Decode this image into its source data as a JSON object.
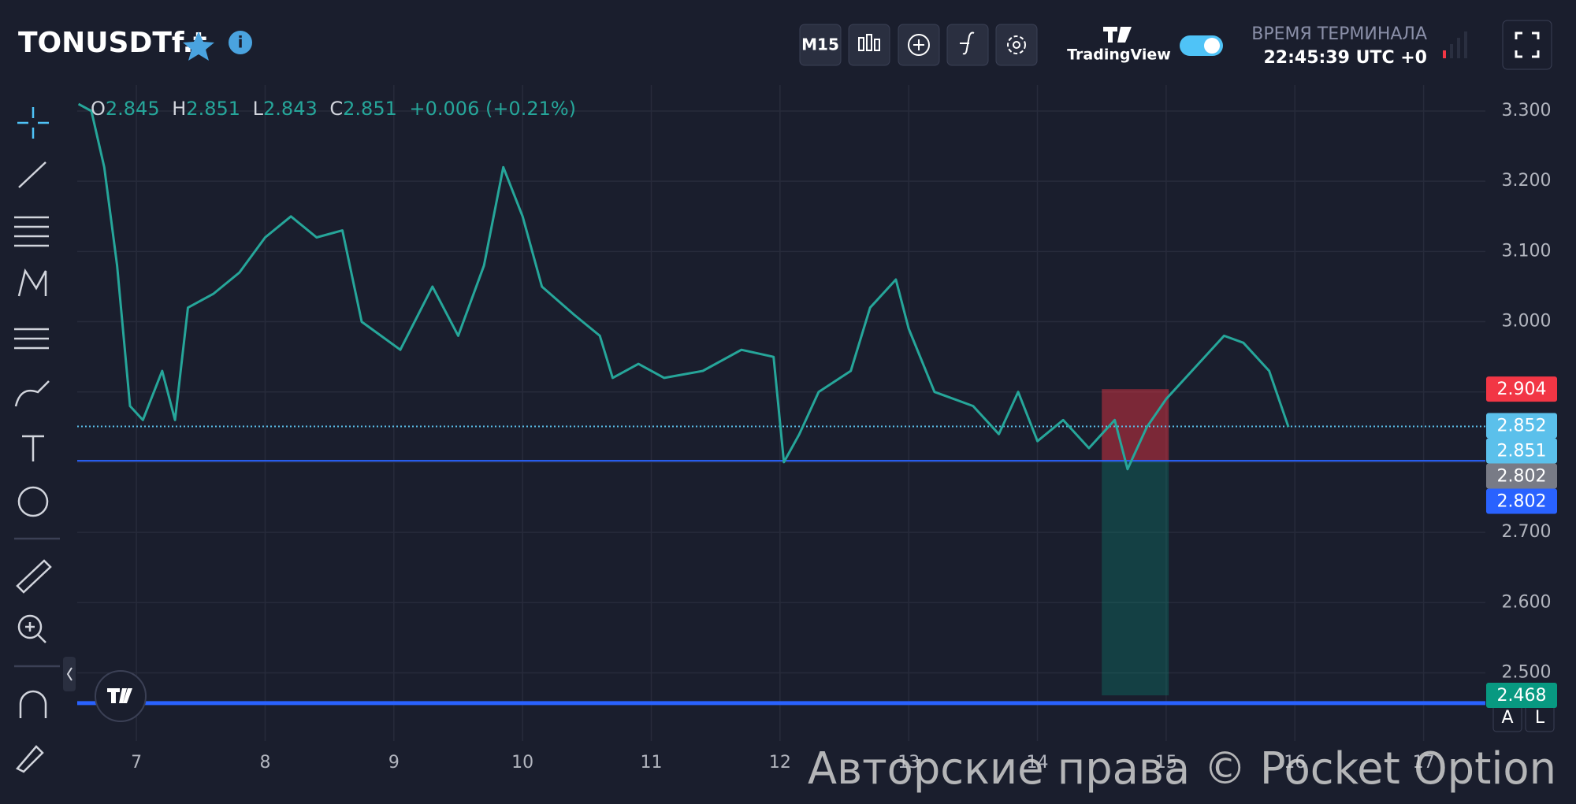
{
  "header": {
    "symbol": "TONUSDTf.t",
    "timeframe": "M15",
    "brand": "TradingView",
    "terminal_label": "ВРЕМЯ ТЕРМИНАЛА",
    "terminal_time": "22:45:39 UTC +0"
  },
  "ohlc": {
    "o_label": "O",
    "o": "2.845",
    "h_label": "H",
    "h": "2.851",
    "l_label": "L",
    "l": "2.843",
    "c_label": "C",
    "c": "2.851",
    "change": "+0.006 (+0.21%)"
  },
  "chart_data": {
    "type": "line",
    "x": [
      6.55,
      6.65,
      6.75,
      6.85,
      6.95,
      7.05,
      7.2,
      7.3,
      7.4,
      7.6,
      7.8,
      8.0,
      8.2,
      8.4,
      8.6,
      8.75,
      8.9,
      9.05,
      9.3,
      9.5,
      9.7,
      9.85,
      10.0,
      10.15,
      10.4,
      10.6,
      10.7,
      10.9,
      11.1,
      11.4,
      11.7,
      11.95,
      12.03,
      12.15,
      12.3,
      12.55,
      12.7,
      12.9,
      13.0,
      13.2,
      13.5,
      13.7,
      13.85,
      14.0,
      14.2,
      14.4,
      14.6,
      14.7,
      14.85,
      15.0,
      15.2,
      15.45,
      15.6,
      15.8,
      15.95
    ],
    "values": [
      3.31,
      3.3,
      3.22,
      3.08,
      2.88,
      2.86,
      2.93,
      2.86,
      3.02,
      3.04,
      3.07,
      3.12,
      3.15,
      3.12,
      3.13,
      3.0,
      2.98,
      2.96,
      3.05,
      2.98,
      3.08,
      3.22,
      3.15,
      3.05,
      3.01,
      2.98,
      2.92,
      2.94,
      2.92,
      2.93,
      2.96,
      2.95,
      2.8,
      2.84,
      2.9,
      2.93,
      3.02,
      3.06,
      2.99,
      2.9,
      2.88,
      2.84,
      2.9,
      2.83,
      2.86,
      2.82,
      2.86,
      2.79,
      2.85,
      2.89,
      2.93,
      2.98,
      2.97,
      2.93,
      2.85
    ],
    "color": "#26a69a",
    "xlim": [
      6.54,
      17.48
    ],
    "xticks": [
      7,
      8,
      9,
      10,
      11,
      12,
      13,
      14,
      15,
      16,
      17
    ],
    "ylim": [
      2.403,
      3.337
    ],
    "yticks": [
      {
        "value": 2.5,
        "label": "2.500"
      },
      {
        "value": 2.6,
        "label": "2.600"
      },
      {
        "value": 2.7,
        "label": "2.700"
      },
      {
        "value": 2.8,
        "label": "2.800"
      },
      {
        "value": 2.9,
        "label": "2.900"
      },
      {
        "value": 3.0,
        "label": "3.000"
      },
      {
        "value": 3.1,
        "label": "3.100"
      },
      {
        "value": 3.2,
        "label": "3.200"
      },
      {
        "value": 3.3,
        "label": "3.300"
      }
    ],
    "grid": true,
    "levels": [
      {
        "value": 2.851,
        "color": "#5bc0eb",
        "style": "dotted"
      },
      {
        "value": 2.802,
        "color": "#2962ff",
        "style": "solid"
      },
      {
        "value": 2.457,
        "color": "#2962ff",
        "style": "thick"
      }
    ],
    "position": {
      "x": [
        14.5,
        15.02
      ],
      "entry": 2.802,
      "stop": 2.904,
      "target": 2.468
    },
    "price_tags": [
      {
        "value": 2.904,
        "color": "#f23645"
      },
      {
        "value": 2.852,
        "color": "#5bc0eb"
      },
      {
        "value": 2.851,
        "color": "#5bc0eb"
      },
      {
        "value": 2.802,
        "color": "#787b86"
      },
      {
        "value": 2.802,
        "color": "#2962ff"
      },
      {
        "value": 2.468,
        "color": "#089981"
      }
    ]
  },
  "buttons": {
    "auto": "A",
    "log": "L"
  },
  "watermark": "Авторские права © Pocket Option"
}
